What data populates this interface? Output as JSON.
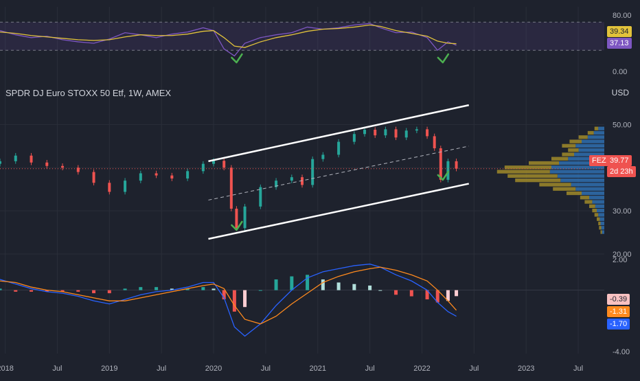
{
  "header": {
    "title": "SPDR DJ Euro STOXX 50 Etf, 1W, AMEX",
    "currency": "USD"
  },
  "colors": {
    "background": "#1e222d",
    "grid": "#2a2e39",
    "up": "#26a69a",
    "down": "#ef5350",
    "rsi": "#7e57c2",
    "rsi_ma": "#e2c33b",
    "macd": "#2962ff",
    "signal": "#ff8a1e",
    "channel": "#ffffff",
    "check": "#4caf50",
    "vp_up": "#2f6fb0",
    "vp_down": "#a08a2a"
  },
  "chart_data": [
    {
      "type": "line",
      "name": "rsi-pane",
      "ylim": [
        0,
        80
      ],
      "ticks": [
        "80.00",
        "0.00"
      ],
      "band": [
        30,
        70
      ],
      "last_labels": {
        "ma": "39.34",
        "rsi": "37.13"
      },
      "x": [
        2017.95,
        2018.1,
        2018.25,
        2018.4,
        2018.55,
        2018.7,
        2018.85,
        2019.0,
        2019.15,
        2019.3,
        2019.45,
        2019.6,
        2019.75,
        2019.9,
        2020.0,
        2020.1,
        2020.2,
        2020.3,
        2020.45,
        2020.6,
        2020.75,
        2020.9,
        2021.05,
        2021.2,
        2021.35,
        2021.5,
        2021.6,
        2021.75,
        2021.9,
        2022.05,
        2022.15,
        2022.25,
        2022.33
      ],
      "series": [
        {
          "name": "RSI",
          "values": [
            58,
            52,
            48,
            50,
            45,
            42,
            40,
            46,
            55,
            52,
            48,
            53,
            56,
            62,
            58,
            32,
            22,
            40,
            48,
            52,
            55,
            63,
            60,
            62,
            66,
            68,
            62,
            55,
            56,
            48,
            30,
            42,
            37.13
          ]
        },
        {
          "name": "RSI MA",
          "values": [
            56,
            54,
            51,
            49,
            47,
            45,
            44,
            45,
            49,
            52,
            51,
            51,
            53,
            57,
            58,
            48,
            36,
            34,
            42,
            48,
            52,
            57,
            60,
            61,
            63,
            66,
            64,
            58,
            54,
            50,
            43,
            40,
            39.34
          ]
        }
      ]
    },
    {
      "type": "candlestick",
      "name": "price-pane",
      "ylim": [
        20,
        55
      ],
      "ticks": [
        "50.00",
        "30.00",
        "20.00"
      ],
      "last_price": "39.77",
      "symbol_badge": "FEZ",
      "countdown": "2d 23h",
      "x": [
        2017.95,
        2018.1,
        2018.25,
        2018.4,
        2018.55,
        2018.7,
        2018.85,
        2019.0,
        2019.15,
        2019.3,
        2019.45,
        2019.6,
        2019.75,
        2019.9,
        2020.0,
        2020.1,
        2020.17,
        2020.22,
        2020.3,
        2020.45,
        2020.6,
        2020.75,
        2020.85,
        2020.95,
        2021.05,
        2021.2,
        2021.35,
        2021.45,
        2021.55,
        2021.65,
        2021.75,
        2021.85,
        2021.95,
        2022.05,
        2022.12,
        2022.18,
        2022.25,
        2022.33
      ],
      "close": [
        41.5,
        42.8,
        41.2,
        40.4,
        40.0,
        39.0,
        36.5,
        34.4,
        37.0,
        38.7,
        38.2,
        37.5,
        39.2,
        40.9,
        41.6,
        40.0,
        30.5,
        26.0,
        31.0,
        35.5,
        37.0,
        37.8,
        36.0,
        42.0,
        43.0,
        46.0,
        47.8,
        48.8,
        47.5,
        48.9,
        47.0,
        48.6,
        48.9,
        47.3,
        44.5,
        37.2,
        41.5,
        39.77
      ],
      "channel": {
        "upper": [
          [
            2019.95,
            41.5
          ],
          [
            2022.45,
            54.5
          ]
        ],
        "mid": [
          [
            2019.95,
            32.5
          ],
          [
            2022.45,
            45.0
          ]
        ],
        "lower": [
          [
            2019.95,
            23.5
          ],
          [
            2022.45,
            36.3
          ]
        ]
      },
      "volume_profile": {
        "price_levels": [
          49,
          48,
          47,
          46,
          45,
          44,
          43,
          42,
          41,
          40,
          39,
          38,
          37,
          36,
          35,
          34,
          33,
          32,
          31,
          30,
          29,
          28,
          27,
          26,
          25
        ],
        "up_volume": [
          8,
          14,
          22,
          30,
          38,
          34,
          40,
          48,
          60,
          70,
          72,
          62,
          58,
          44,
          38,
          30,
          20,
          16,
          12,
          10,
          8,
          6,
          5,
          4,
          3
        ],
        "down_volume": [
          5,
          8,
          12,
          16,
          18,
          14,
          16,
          22,
          40,
          62,
          70,
          66,
          60,
          42,
          30,
          20,
          12,
          10,
          8,
          6,
          5,
          4,
          3,
          3,
          2
        ]
      }
    },
    {
      "type": "line",
      "name": "macd-pane",
      "ylim": [
        -4,
        2
      ],
      "ticks": [
        "2.00",
        "-4.00"
      ],
      "last_labels": {
        "hist": "-0.39",
        "signal": "-1.31",
        "macd": "-1.70"
      },
      "x": [
        2017.95,
        2018.1,
        2018.25,
        2018.4,
        2018.55,
        2018.7,
        2018.85,
        2019.0,
        2019.15,
        2019.3,
        2019.45,
        2019.6,
        2019.75,
        2019.9,
        2020.0,
        2020.1,
        2020.2,
        2020.3,
        2020.45,
        2020.6,
        2020.75,
        2020.9,
        2021.05,
        2021.2,
        2021.35,
        2021.5,
        2021.6,
        2021.75,
        2021.9,
        2022.05,
        2022.15,
        2022.25,
        2022.33
      ],
      "series": [
        {
          "name": "MACD",
          "values": [
            0.7,
            0.4,
            0.1,
            -0.1,
            -0.2,
            -0.4,
            -0.7,
            -0.9,
            -0.6,
            -0.3,
            -0.1,
            0.0,
            0.2,
            0.5,
            0.5,
            -0.5,
            -2.4,
            -3.0,
            -2.2,
            -1.0,
            0.0,
            0.8,
            1.2,
            1.4,
            1.6,
            1.7,
            1.5,
            1.0,
            0.6,
            0.0,
            -0.8,
            -1.4,
            -1.7
          ]
        },
        {
          "name": "Signal",
          "values": [
            0.6,
            0.5,
            0.2,
            0.0,
            -0.1,
            -0.3,
            -0.5,
            -0.7,
            -0.7,
            -0.5,
            -0.3,
            -0.1,
            0.1,
            0.3,
            0.4,
            0.1,
            -1.0,
            -1.9,
            -2.2,
            -1.7,
            -0.9,
            -0.2,
            0.5,
            0.9,
            1.2,
            1.4,
            1.5,
            1.3,
            1.0,
            0.6,
            0.0,
            -0.7,
            -1.31
          ]
        },
        {
          "name": "Histogram",
          "values": [
            0.1,
            -0.1,
            -0.1,
            -0.1,
            -0.1,
            -0.1,
            -0.2,
            -0.2,
            0.1,
            0.2,
            0.2,
            0.1,
            0.1,
            0.2,
            0.1,
            -0.6,
            -1.4,
            -1.1,
            0.0,
            0.7,
            0.9,
            1.0,
            0.7,
            0.5,
            0.4,
            0.3,
            0.0,
            -0.3,
            -0.4,
            -0.6,
            -0.8,
            -0.7,
            -0.39
          ]
        }
      ]
    }
  ],
  "x_axis": {
    "labels": [
      {
        "t": 2018.0,
        "text": "2018"
      },
      {
        "t": 2018.5,
        "text": "Jul"
      },
      {
        "t": 2019.0,
        "text": "2019"
      },
      {
        "t": 2019.5,
        "text": "Jul"
      },
      {
        "t": 2020.0,
        "text": "2020"
      },
      {
        "t": 2020.5,
        "text": "Jul"
      },
      {
        "t": 2021.0,
        "text": "2021"
      },
      {
        "t": 2021.5,
        "text": "Jul"
      },
      {
        "t": 2022.0,
        "text": "2022"
      },
      {
        "t": 2022.5,
        "text": "Jul"
      },
      {
        "t": 2023.0,
        "text": "2023"
      },
      {
        "t": 2023.5,
        "text": "Jul"
      }
    ]
  },
  "annotations": {
    "checkmarks": [
      {
        "pane": "rsi",
        "t": 2020.22
      },
      {
        "pane": "rsi",
        "t": 2022.2
      },
      {
        "pane": "price",
        "t": 2020.22
      },
      {
        "pane": "price",
        "t": 2022.2
      }
    ]
  }
}
